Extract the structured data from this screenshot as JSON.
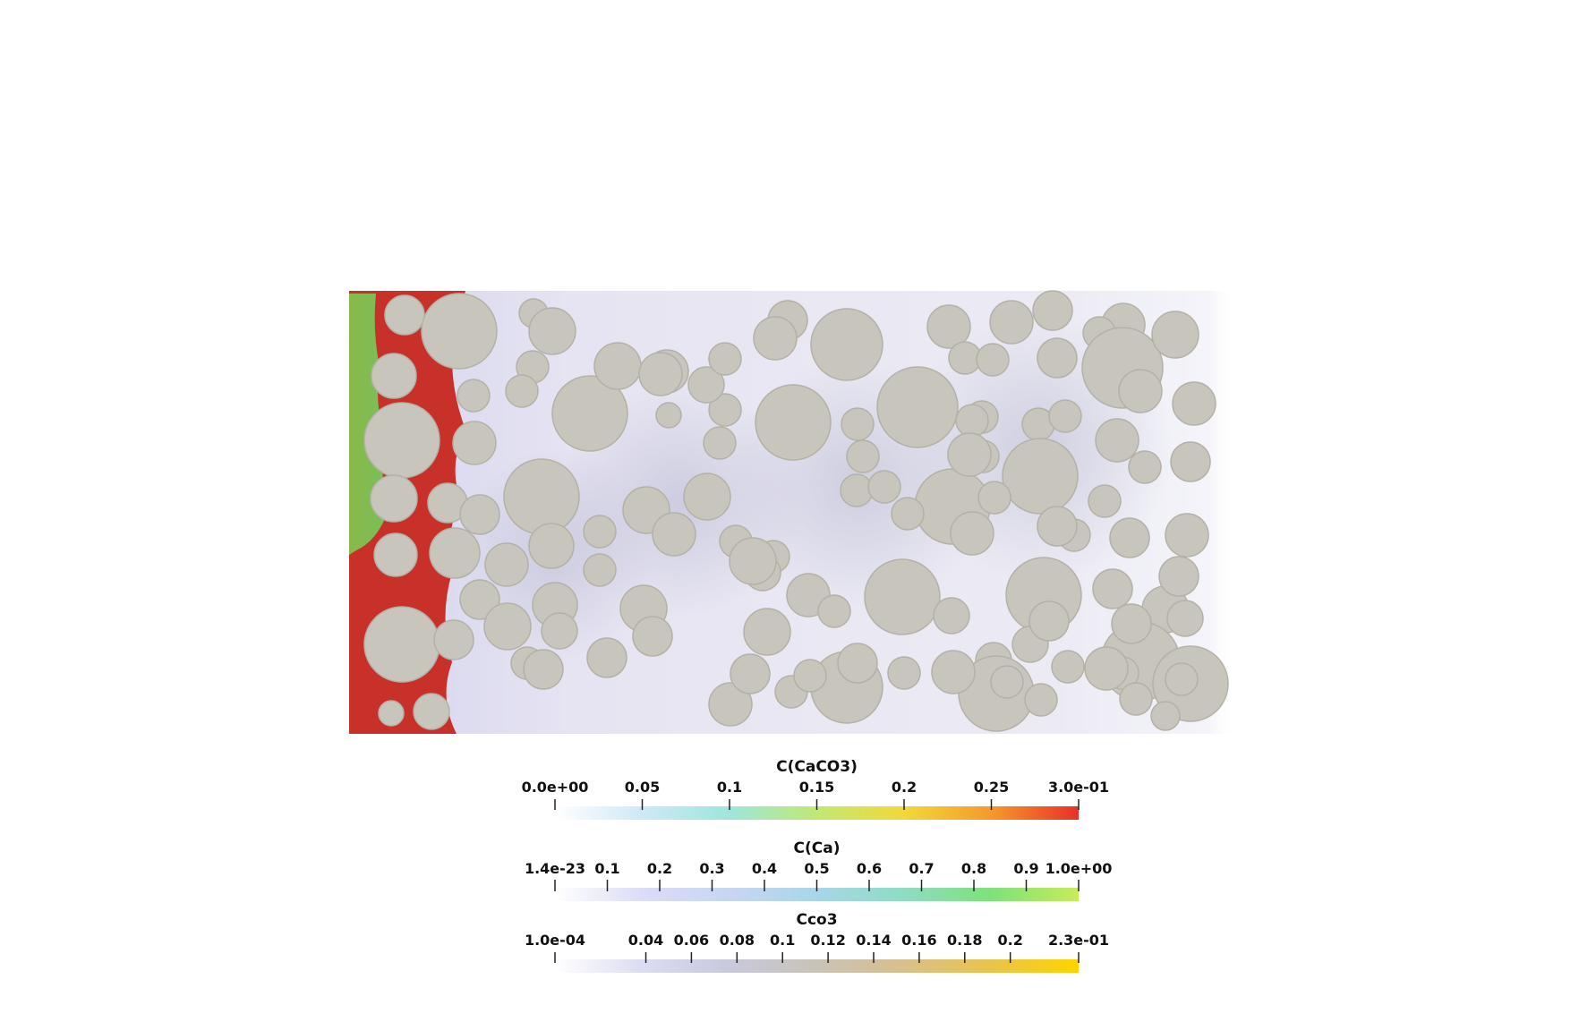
{
  "colorbars": [
    {
      "title": "C(CaCO3)",
      "range": [
        0.0,
        0.3
      ],
      "tick_labels": [
        "0.0e+00",
        "0.05",
        "0.1",
        "0.15",
        "0.2",
        "0.25",
        "3.0e-01"
      ],
      "tick_values": [
        0.0,
        0.05,
        0.1,
        0.15,
        0.2,
        0.25,
        0.3
      ],
      "colormap": [
        "#ffffff",
        "#cfe8f6",
        "#9ee6dc",
        "#c2e872",
        "#f2d83a",
        "#f59a2a",
        "#e8302a"
      ]
    },
    {
      "title": "C(Ca)",
      "range": [
        1.4e-23,
        1.0
      ],
      "tick_labels": [
        "1.4e-23",
        "0.1",
        "0.2",
        "0.3",
        "0.4",
        "0.5",
        "0.6",
        "0.7",
        "0.8",
        "0.9",
        "1.0e+00"
      ],
      "tick_values": [
        0.0,
        0.1,
        0.2,
        0.3,
        0.4,
        0.5,
        0.6,
        0.7,
        0.8,
        0.9,
        1.0
      ],
      "colormap": [
        "#ffffff",
        "#dcdcf6",
        "#c8d6f2",
        "#a8d6e8",
        "#8edcc4",
        "#7ee27a",
        "#c8ec5a"
      ]
    },
    {
      "title": "Cco3",
      "range": [
        0.0001,
        0.23
      ],
      "tick_labels": [
        "1.0e-04",
        "0.04",
        "0.06",
        "0.08",
        "0.1",
        "0.12",
        "0.14",
        "0.16",
        "0.18",
        "0.2",
        "2.3e-01"
      ],
      "tick_values": [
        0.0001,
        0.04,
        0.06,
        0.08,
        0.1,
        0.12,
        0.14,
        0.16,
        0.18,
        0.2,
        0.23
      ],
      "colormap": [
        "#ffffff",
        "#dcdcf2",
        "#c9c9dc",
        "#c8c3b8",
        "#d8bf8c",
        "#e8c44c",
        "#ffd400"
      ]
    }
  ],
  "colors": {
    "grain": "#c8c5bc",
    "grain_outline": "#b4b1a8",
    "pore_background": "#eceaf5",
    "reacted_caco3": "#c8302a",
    "ca_front": "#8cc04a"
  }
}
